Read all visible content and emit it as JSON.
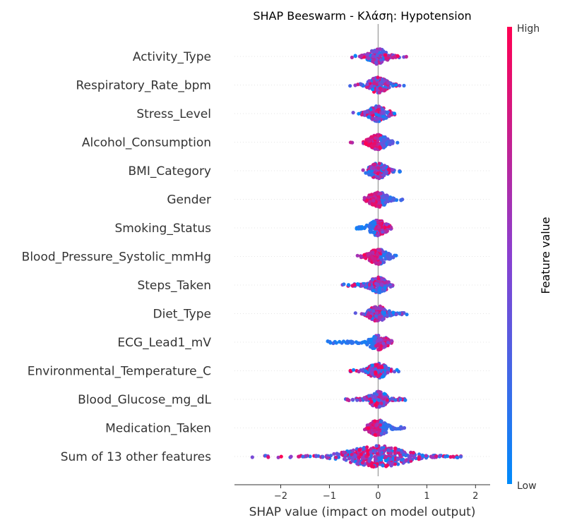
{
  "chart_data": {
    "type": "scatter",
    "subtype": "shap-beeswarm",
    "title": "SHAP Beeswarm - Κλάση: Hypotension",
    "xlabel": "SHAP value (impact on model output)",
    "xlim": [
      -2.95,
      2.3
    ],
    "xticks": [
      -2,
      -1,
      0,
      1,
      2
    ],
    "xtick_labels": [
      "−2",
      "−1",
      "0",
      "1",
      "2"
    ],
    "colorbar": {
      "label": "Feature value",
      "high_label": "High",
      "low_label": "Low",
      "low_color": "#008bfb",
      "high_color": "#ff0052"
    },
    "features": [
      {
        "name": "Activity_Type",
        "min": -0.55,
        "max": 0.58,
        "dense": [
          -0.35,
          0.45
        ],
        "low_side": "mixed"
      },
      {
        "name": "Respiratory_Rate_bpm",
        "min": -0.6,
        "max": 0.55,
        "dense": [
          -0.4,
          0.4
        ],
        "low_side": "mixed"
      },
      {
        "name": "Stress_Level",
        "min": -0.6,
        "max": 0.38,
        "dense": [
          -0.4,
          0.3
        ],
        "low_side": "mixed"
      },
      {
        "name": "Alcohol_Consumption",
        "min": -0.6,
        "max": 0.72,
        "dense": [
          -0.2,
          0.3
        ],
        "low_side": "right"
      },
      {
        "name": "BMI_Category",
        "min": -0.35,
        "max": 0.5,
        "dense": [
          -0.25,
          0.45
        ],
        "low_side": "mixed"
      },
      {
        "name": "Gender",
        "min": -0.28,
        "max": 0.72,
        "dense": [
          -0.1,
          0.5
        ],
        "low_side": "right"
      },
      {
        "name": "Smoking_Status",
        "min": -0.5,
        "max": 0.38,
        "dense": [
          -0.45,
          0.3
        ],
        "low_side": "left"
      },
      {
        "name": "Blood_Pressure_Systolic_mmHg",
        "min": -0.45,
        "max": 0.38,
        "dense": [
          -0.35,
          0.35
        ],
        "low_side": "right"
      },
      {
        "name": "Steps_Taken",
        "min": -0.8,
        "max": 0.38,
        "dense": [
          -0.75,
          0.3
        ],
        "low_side": "mixed"
      },
      {
        "name": "Diet_Type",
        "min": -0.48,
        "max": 0.62,
        "dense": [
          -0.35,
          0.6
        ],
        "low_side": "mixed"
      },
      {
        "name": "ECG_Lead1_mV",
        "min": -1.12,
        "max": 0.35,
        "dense": [
          -1.05,
          0.2
        ],
        "low_side": "left"
      },
      {
        "name": "Environmental_Temperature_C",
        "min": -0.62,
        "max": 0.52,
        "dense": [
          -0.55,
          0.45
        ],
        "low_side": "mixed"
      },
      {
        "name": "Blood_Glucose_mg_dL",
        "min": -0.68,
        "max": 0.58,
        "dense": [
          -0.65,
          0.55
        ],
        "low_side": "mixed"
      },
      {
        "name": "Medication_Taken",
        "min": -0.3,
        "max": 0.58,
        "dense": [
          -0.25,
          0.55
        ],
        "low_side": "right"
      },
      {
        "name": "Sum of 13 other features",
        "min": -2.68,
        "max": 2.08,
        "dense": [
          -1.9,
          1.7
        ],
        "low_side": "mixed"
      }
    ]
  }
}
